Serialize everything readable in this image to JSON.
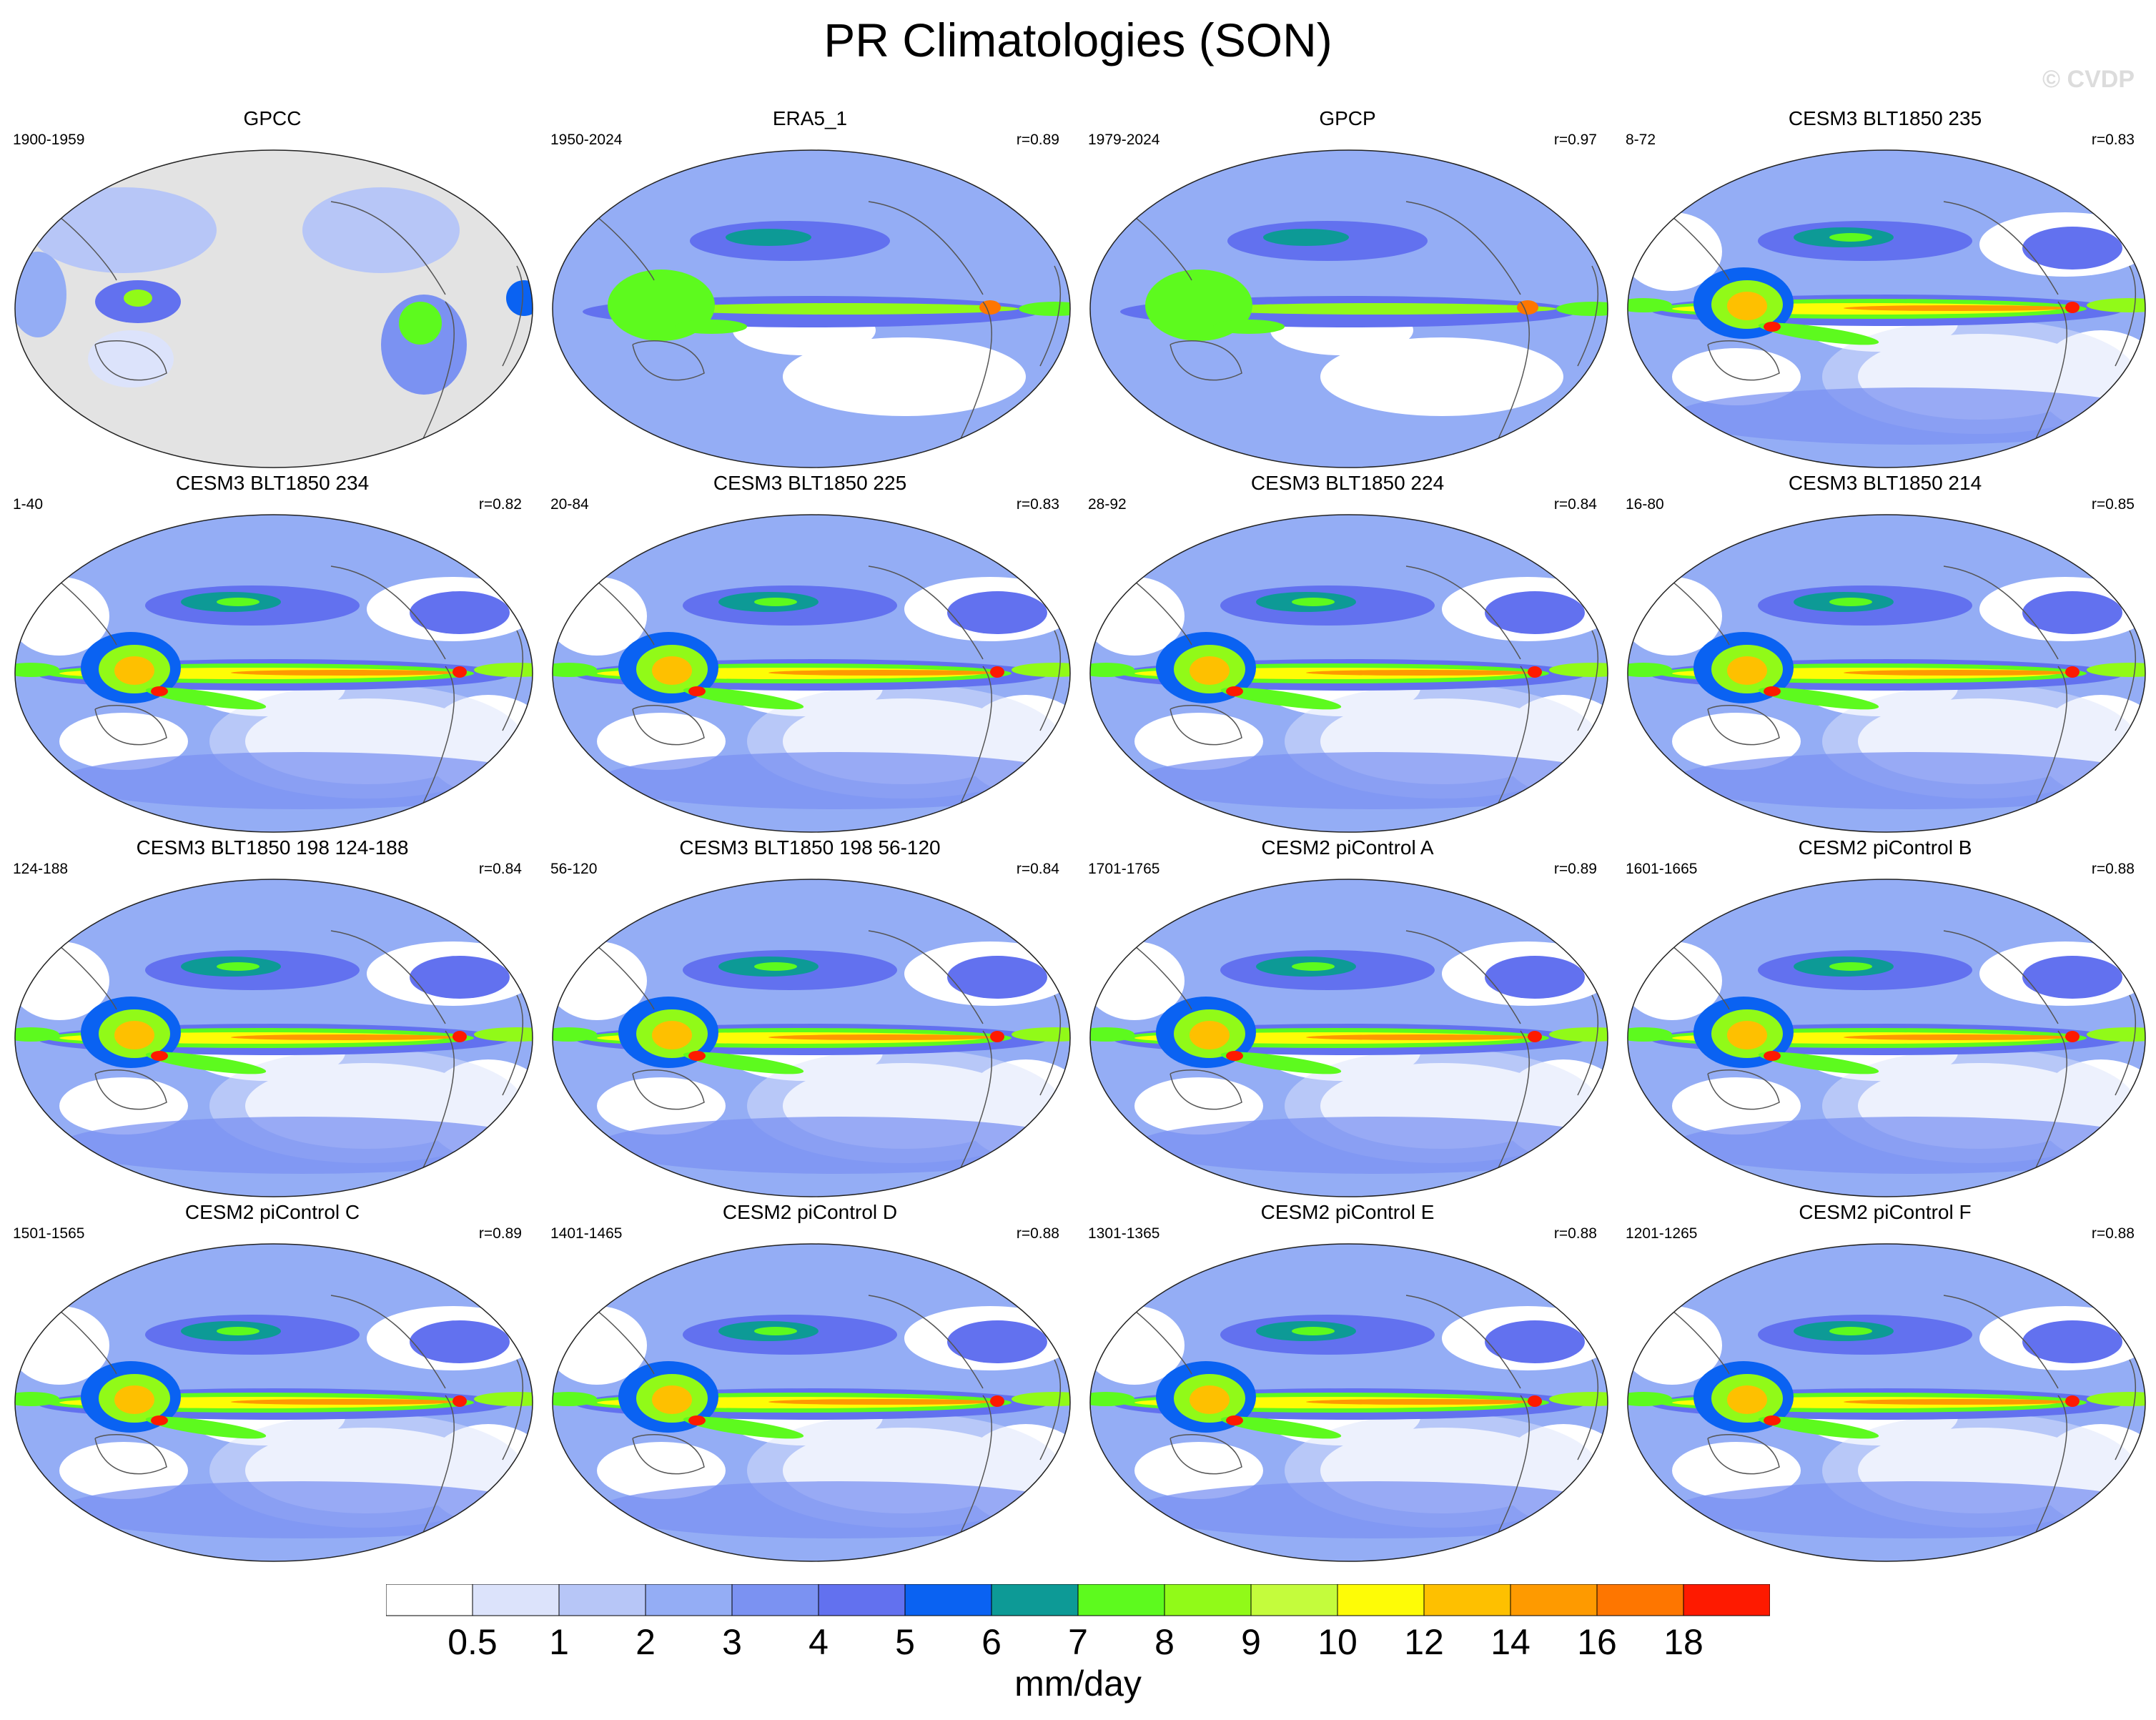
{
  "title": "PR Climatologies (SON)",
  "watermark": "© CVDP",
  "chart_data": {
    "type": "heatmap",
    "title": "PR Climatologies (SON)",
    "projection": "Robinson, Pacific-centered",
    "panels": [
      {
        "name": "GPCC",
        "years": "1900-1959",
        "r": ""
      },
      {
        "name": "ERA5_1",
        "years": "1950-2024",
        "r": "r=0.89"
      },
      {
        "name": "GPCP",
        "years": "1979-2024",
        "r": "r=0.97"
      },
      {
        "name": "CESM3 BLT1850 235",
        "years": "8-72",
        "r": "r=0.83"
      },
      {
        "name": "CESM3 BLT1850 234",
        "years": "1-40",
        "r": "r=0.82"
      },
      {
        "name": "CESM3 BLT1850 225",
        "years": "20-84",
        "r": "r=0.83"
      },
      {
        "name": "CESM3 BLT1850 224",
        "years": "28-92",
        "r": "r=0.84"
      },
      {
        "name": "CESM3 BLT1850 214",
        "years": "16-80",
        "r": "r=0.85"
      },
      {
        "name": "CESM3 BLT1850 198 124-188",
        "years": "124-188",
        "r": "r=0.84"
      },
      {
        "name": "CESM3 BLT1850 198 56-120",
        "years": "56-120",
        "r": "r=0.84"
      },
      {
        "name": "CESM2 piControl A",
        "years": "1701-1765",
        "r": "r=0.89"
      },
      {
        "name": "CESM2 piControl B",
        "years": "1601-1665",
        "r": "r=0.88"
      },
      {
        "name": "CESM2 piControl C",
        "years": "1501-1565",
        "r": "r=0.89"
      },
      {
        "name": "CESM2 piControl D",
        "years": "1401-1465",
        "r": "r=0.88"
      },
      {
        "name": "CESM2 piControl E",
        "years": "1301-1365",
        "r": "r=0.88"
      },
      {
        "name": "CESM2 piControl F",
        "years": "1201-1265",
        "r": "r=0.88"
      }
    ],
    "colorbar": {
      "levels": [
        "0.5",
        "1",
        "2",
        "3",
        "4",
        "5",
        "6",
        "7",
        "8",
        "9",
        "10",
        "12",
        "14",
        "16",
        "18"
      ],
      "colors": [
        "#ffffff",
        "#dce3fb",
        "#b7c6f7",
        "#94adf5",
        "#7b92f2",
        "#6271ef",
        "#0a62f2",
        "#0d9a96",
        "#5dfa1e",
        "#91fa18",
        "#c4fc3c",
        "#fefc06",
        "#fec000",
        "#fe9a00",
        "#fe7600",
        "#fe1a00"
      ],
      "unit": "mm/day"
    }
  }
}
